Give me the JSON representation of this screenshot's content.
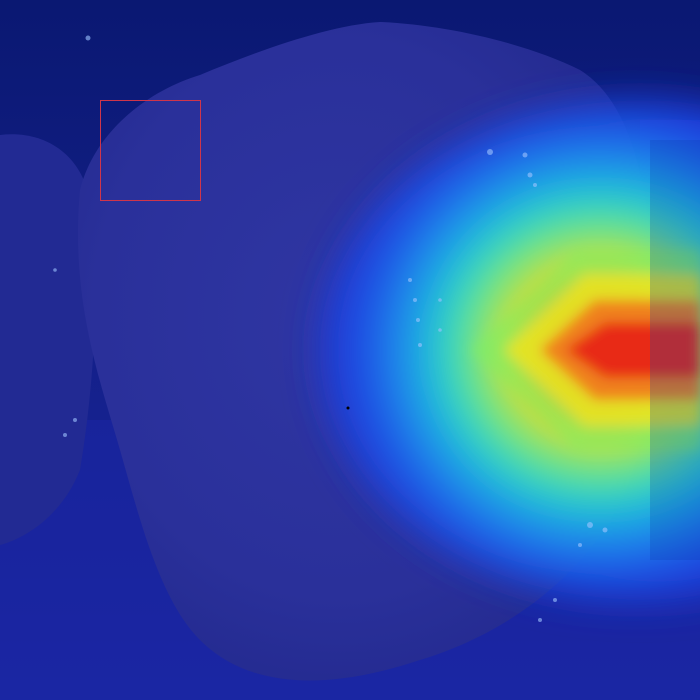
{
  "image": {
    "subject": "tooth-heatmap-overlay",
    "colors": {
      "background": "#0b1a78",
      "tooth_body": "#2a309a",
      "neighbor_tooth": "#1f2790",
      "heat_low": "#1a2bd8",
      "heat_mid": "#28e0c8",
      "heat_high": "#f5e418",
      "heat_peak": "#e8221a",
      "roi_box": "#d0354a"
    }
  }
}
